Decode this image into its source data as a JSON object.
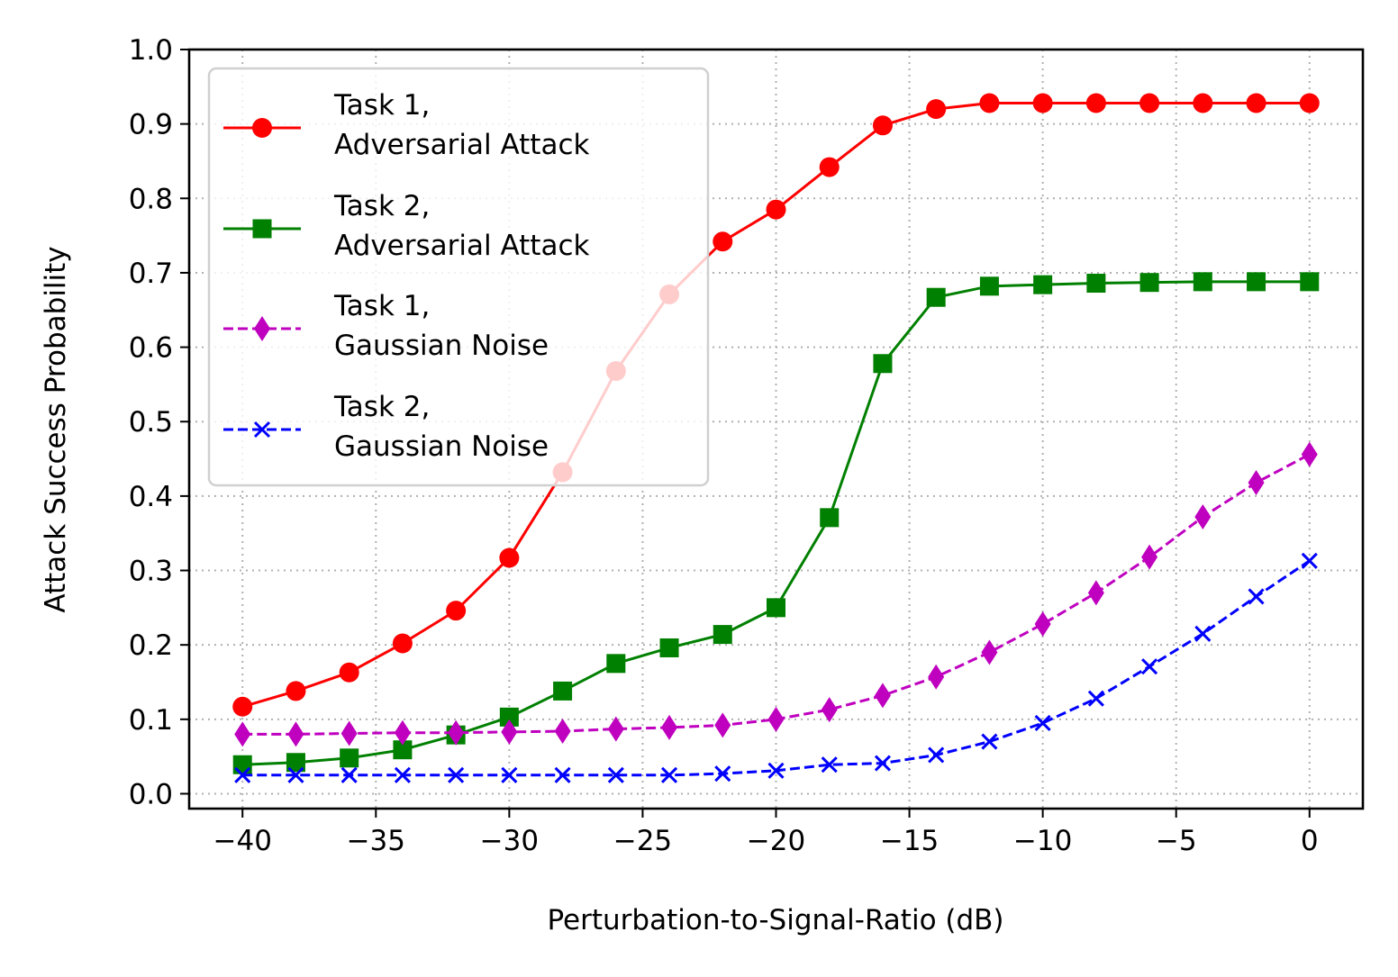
{
  "chart_data": {
    "type": "line",
    "title": "",
    "xlabel": "Perturbation-to-Signal-Ratio (dB)",
    "ylabel": "Attack Success Probability",
    "xlim": [
      -42,
      2
    ],
    "ylim": [
      -0.02,
      1.0
    ],
    "x_ticks": [
      -40,
      -35,
      -30,
      -25,
      -20,
      -15,
      -10,
      -5,
      0
    ],
    "x_tick_labels": [
      "−40",
      "−35",
      "−30",
      "−25",
      "−20",
      "−15",
      "−10",
      "−5",
      "0"
    ],
    "y_ticks": [
      0.0,
      0.1,
      0.2,
      0.3,
      0.4,
      0.5,
      0.6,
      0.7,
      0.8,
      0.9,
      1.0
    ],
    "y_tick_labels": [
      "0.0",
      "0.1",
      "0.2",
      "0.3",
      "0.4",
      "0.5",
      "0.6",
      "0.7",
      "0.8",
      "0.9",
      "1.0"
    ],
    "grid": true,
    "legend_position": "top-left",
    "x": [
      -40,
      -38,
      -36,
      -34,
      -32,
      -30,
      -28,
      -26,
      -24,
      -22,
      -20,
      -18,
      -16,
      -14,
      -12,
      -10,
      -8,
      -6,
      -4,
      -2,
      0
    ],
    "series": [
      {
        "name_line1": "Task 1,",
        "name_line2": "Adversarial Attack",
        "color": "#ff0000",
        "marker": "circle",
        "dash": "solid",
        "values": [
          0.117,
          0.138,
          0.163,
          0.202,
          0.246,
          0.317,
          0.432,
          0.568,
          0.671,
          0.742,
          0.785,
          0.842,
          0.898,
          0.92,
          0.928,
          0.928,
          0.928,
          0.928,
          0.928,
          0.928,
          0.928
        ]
      },
      {
        "name_line1": "Task 2,",
        "name_line2": "Adversarial Attack",
        "color": "#008000",
        "marker": "square",
        "dash": "solid",
        "values": [
          0.039,
          0.042,
          0.048,
          0.059,
          0.079,
          0.103,
          0.138,
          0.175,
          0.196,
          0.214,
          0.25,
          0.371,
          0.578,
          0.667,
          0.682,
          0.684,
          0.686,
          0.687,
          0.688,
          0.688,
          0.688
        ]
      },
      {
        "name_line1": "Task 1,",
        "name_line2": "Gaussian Noise",
        "color": "#bf00bf",
        "marker": "diamond",
        "dash": "dashed",
        "values": [
          0.08,
          0.08,
          0.081,
          0.082,
          0.082,
          0.083,
          0.084,
          0.087,
          0.089,
          0.092,
          0.1,
          0.113,
          0.132,
          0.157,
          0.19,
          0.228,
          0.27,
          0.318,
          0.372,
          0.418,
          0.456
        ]
      },
      {
        "name_line1": "Task 2,",
        "name_line2": "Gaussian Noise",
        "color": "#0000ff",
        "marker": "x",
        "dash": "dashed",
        "values": [
          0.025,
          0.025,
          0.025,
          0.025,
          0.025,
          0.025,
          0.025,
          0.025,
          0.025,
          0.027,
          0.031,
          0.039,
          0.041,
          0.052,
          0.07,
          0.095,
          0.128,
          0.171,
          0.215,
          0.265,
          0.313
        ]
      }
    ]
  }
}
